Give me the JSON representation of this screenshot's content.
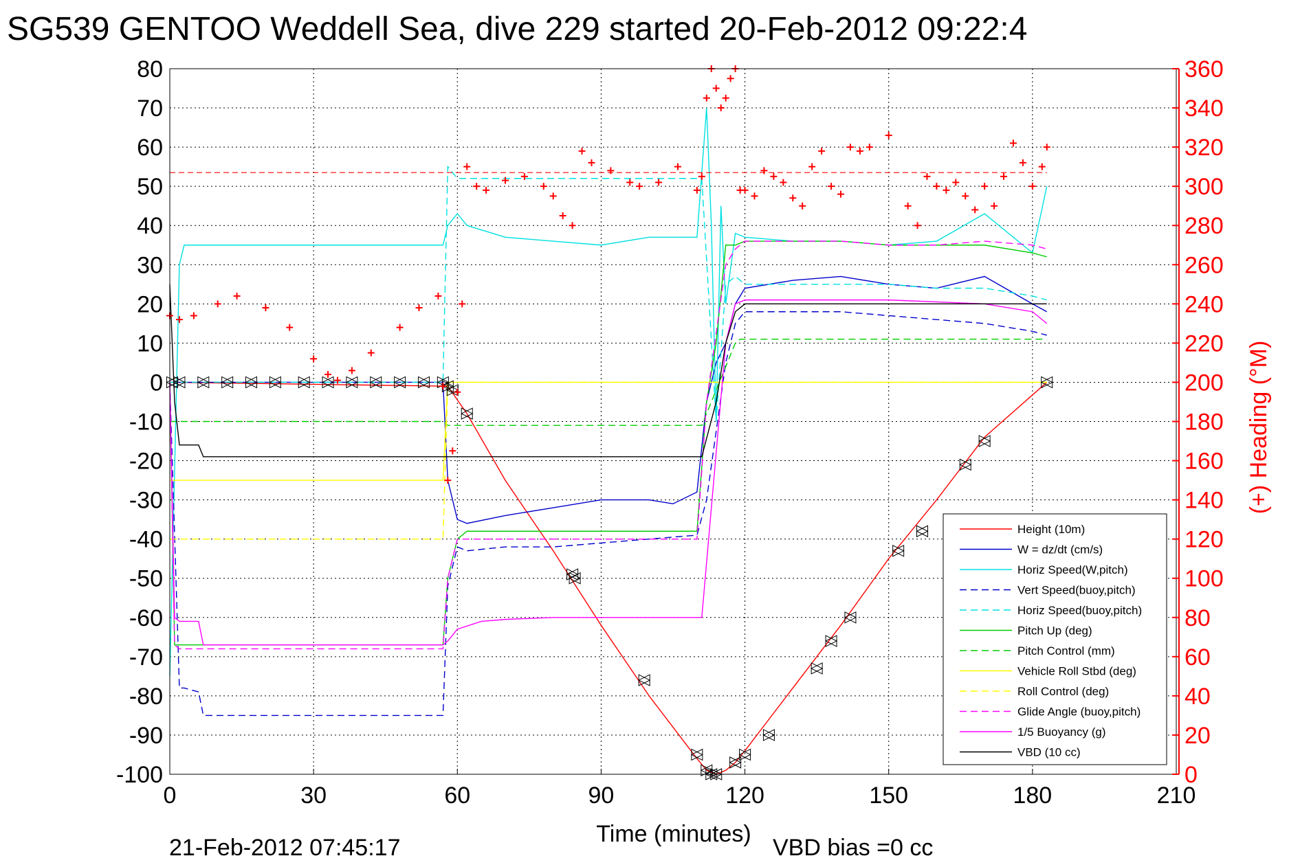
{
  "chart_data": {
    "type": "line",
    "title": "SG539 GENTOO Weddell Sea, dive 229 started 20-Feb-2012 09:22:4",
    "xlabel": "Time (minutes)",
    "ylabel": "",
    "y2label": "(+) Heading (°M)",
    "xlim": [
      0,
      210
    ],
    "ylim": [
      -100,
      80
    ],
    "y2lim": [
      0,
      360
    ],
    "xticks": [
      "0",
      "30",
      "60",
      "90",
      "120",
      "150",
      "180",
      "210"
    ],
    "yticks": [
      "80",
      "70",
      "60",
      "50",
      "40",
      "30",
      "20",
      "10",
      "0",
      "-10",
      "-20",
      "-30",
      "-40",
      "-50",
      "-60",
      "-70",
      "-80",
      "-90",
      "-100"
    ],
    "y2ticks": [
      "360",
      "340",
      "320",
      "300",
      "280",
      "260",
      "240",
      "220",
      "200",
      "180",
      "160",
      "140",
      "120",
      "100",
      "80",
      "60",
      "40",
      "20",
      "0"
    ],
    "grid": true,
    "legend_position": "bottom-right",
    "footer_date": "21-Feb-2012 07:45:17",
    "footer_bias": "VBD bias =0 cc",
    "heading_target": 307,
    "series": [
      {
        "name": "Height (10m)",
        "color": "#ff0000",
        "dash": "solid",
        "x": [
          0,
          58,
          62,
          70,
          80,
          90,
          100,
          110,
          112,
          114,
          116,
          118,
          120,
          125,
          130,
          140,
          150,
          160,
          170,
          183
        ],
        "y": [
          0,
          -1,
          -8,
          -25,
          -43,
          -62,
          -80,
          -96,
          -99,
          -100,
          -99,
          -97,
          -94,
          -86,
          -78,
          -62,
          -45,
          -30,
          -14,
          0
        ]
      },
      {
        "name": "W = dz/dt (cm/s)",
        "color": "#0000cc",
        "dash": "solid",
        "x": [
          0,
          57,
          58,
          60,
          62,
          70,
          80,
          90,
          100,
          105,
          110,
          112,
          114,
          116,
          118,
          120,
          130,
          140,
          150,
          160,
          170,
          180,
          183
        ],
        "y": [
          0,
          0,
          -25,
          -35,
          -36,
          -34,
          -32,
          -30,
          -30,
          -31,
          -28,
          -5,
          5,
          10,
          20,
          24,
          26,
          27,
          25,
          24,
          27,
          20,
          18
        ]
      },
      {
        "name": "Horiz Speed(W,pitch)",
        "color": "#00e0e0",
        "dash": "solid",
        "x": [
          0,
          2,
          3,
          57,
          58,
          60,
          62,
          70,
          80,
          90,
          100,
          110,
          112,
          113,
          114,
          115,
          116,
          118,
          120,
          130,
          140,
          150,
          160,
          170,
          180,
          183
        ],
        "y": [
          -75,
          30,
          35,
          35,
          40,
          43,
          40,
          37,
          36,
          35,
          37,
          37,
          70,
          40,
          -10,
          45,
          20,
          38,
          37,
          36,
          36,
          35,
          36,
          43,
          33,
          50
        ]
      },
      {
        "name": "Vert Speed(buoy,pitch)",
        "color": "#0000cc",
        "dash": "dashed",
        "x": [
          0,
          2,
          3,
          6,
          7,
          57,
          58,
          60,
          62,
          70,
          80,
          90,
          100,
          110,
          112,
          116,
          118,
          120,
          130,
          140,
          150,
          160,
          170,
          180,
          183
        ],
        "y": [
          0,
          -78,
          -78,
          -79,
          -85,
          -85,
          -52,
          -42,
          -43,
          -42,
          -42,
          -41,
          -40,
          -39,
          -30,
          5,
          15,
          18,
          18,
          18,
          17,
          16,
          15,
          13,
          12
        ]
      },
      {
        "name": "Horiz Speed(buoy,pitch)",
        "color": "#00e0e0",
        "dash": "dashed",
        "x": [
          0,
          57,
          58,
          60,
          70,
          80,
          90,
          100,
          110,
          111,
          114,
          116,
          118,
          120,
          130,
          140,
          150,
          160,
          170,
          180,
          183
        ],
        "y": [
          0,
          0,
          55,
          52,
          52,
          52,
          52,
          52,
          52,
          52,
          -10,
          25,
          27,
          25,
          25,
          25,
          25,
          24,
          24,
          22,
          21
        ]
      },
      {
        "name": "Pitch Up (deg)",
        "color": "#00cc00",
        "dash": "solid",
        "x": [
          0,
          1,
          2,
          57,
          58,
          60,
          62,
          70,
          80,
          90,
          100,
          110,
          112,
          114,
          116,
          118,
          120,
          130,
          140,
          150,
          160,
          170,
          180,
          183
        ],
        "y": [
          0,
          -67,
          -67,
          -67,
          -50,
          -40,
          -38,
          -38,
          -38,
          -38,
          -38,
          -38,
          -5,
          10,
          35,
          35,
          36,
          36,
          36,
          35,
          35,
          35,
          33,
          32
        ]
      },
      {
        "name": "Pitch Control (mm)",
        "color": "#00cc00",
        "dash": "dashed",
        "x": [
          0,
          57,
          58,
          110,
          111,
          118,
          119,
          180,
          183
        ],
        "y": [
          -10,
          -10,
          -11,
          -11,
          -11,
          10,
          11,
          11,
          11
        ]
      },
      {
        "name": "Vehicle Roll Stbd (deg)",
        "color": "#ffff00",
        "dash": "solid",
        "x": [
          0,
          57,
          58,
          60,
          70,
          80,
          90,
          100,
          110,
          115,
          118,
          120,
          130,
          140,
          150,
          160,
          170,
          180,
          183
        ],
        "y": [
          -25,
          -25,
          0,
          0,
          0,
          0,
          0,
          0,
          0,
          0,
          0,
          0,
          0,
          0,
          0,
          0,
          0,
          0,
          0
        ]
      },
      {
        "name": "Roll Control (deg)",
        "color": "#ffff00",
        "dash": "dashed",
        "x": [
          0,
          57,
          58,
          120,
          183
        ],
        "y": [
          -40,
          -40,
          0,
          0,
          0
        ]
      },
      {
        "name": "Glide Angle (buoy,pitch)",
        "color": "#ff00ff",
        "dash": "dashed",
        "x": [
          0,
          1,
          2,
          57,
          58,
          60,
          62,
          70,
          80,
          90,
          100,
          110,
          112,
          116,
          118,
          120,
          130,
          140,
          150,
          160,
          170,
          180,
          183
        ],
        "y": [
          0,
          -67,
          -68,
          -68,
          -50,
          -40,
          -40,
          -40,
          -40,
          -40,
          -40,
          -40,
          -5,
          30,
          34,
          36,
          36,
          36,
          35,
          35,
          36,
          35,
          34
        ]
      },
      {
        "name": "1/5 Buoyancy (g)",
        "color": "#ff00ff",
        "dash": "solid",
        "x": [
          0,
          1,
          2,
          6,
          7,
          57,
          58,
          60,
          65,
          70,
          80,
          90,
          100,
          110,
          111,
          116,
          118,
          120,
          130,
          140,
          150,
          160,
          170,
          180,
          183
        ],
        "y": [
          0,
          -60,
          -61,
          -61,
          -67,
          -67,
          -66,
          -63,
          -61,
          -60.5,
          -60,
          -60,
          -60,
          -60,
          -60,
          10,
          20,
          21,
          21,
          21,
          21,
          20.5,
          20,
          18,
          15
        ]
      },
      {
        "name": "VBD (10 cc)",
        "color": "#000000",
        "dash": "solid",
        "x": [
          0,
          1,
          2,
          6,
          7,
          57,
          58,
          110,
          111,
          114,
          116,
          118,
          120,
          130,
          140,
          150,
          160,
          170,
          180,
          183
        ],
        "y": [
          25,
          -5,
          -16,
          -16,
          -19,
          -19,
          -19,
          -19,
          -19,
          -5,
          10,
          18,
          20,
          20,
          20,
          20,
          20,
          20,
          20,
          20
        ]
      }
    ],
    "heading": {
      "name": "(+) Heading (°M)",
      "color": "#ff0000",
      "x": [
        0,
        2,
        5,
        10,
        14,
        20,
        25,
        30,
        33,
        35,
        38,
        42,
        48,
        52,
        56,
        57,
        58,
        59,
        60,
        61,
        62,
        64,
        66,
        70,
        74,
        78,
        80,
        82,
        84,
        86,
        88,
        92,
        96,
        98,
        102,
        106,
        110,
        111,
        112,
        113,
        114,
        115,
        116,
        117,
        118,
        119,
        120,
        122,
        124,
        126,
        128,
        130,
        132,
        134,
        136,
        138,
        140,
        142,
        144,
        146,
        150,
        154,
        156,
        158,
        160,
        162,
        164,
        166,
        168,
        170,
        172,
        174,
        176,
        178,
        180,
        182,
        183
      ],
      "y": [
        234,
        232,
        234,
        240,
        244,
        238,
        228,
        212,
        204,
        201,
        206,
        215,
        228,
        238,
        244,
        198,
        150,
        165,
        195,
        240,
        310,
        300,
        298,
        303,
        305,
        300,
        295,
        285,
        280,
        318,
        312,
        308,
        302,
        300,
        302,
        310,
        298,
        305,
        345,
        360,
        350,
        340,
        345,
        355,
        370,
        298,
        298,
        295,
        308,
        305,
        302,
        294,
        290,
        310,
        318,
        300,
        296,
        320,
        318,
        320,
        326,
        290,
        280,
        305,
        300,
        298,
        302,
        295,
        288,
        300,
        290,
        305,
        322,
        312,
        300,
        310,
        320
      ]
    },
    "markers": {
      "name": "triangle markers",
      "color": "#000000",
      "x": [
        0.5,
        2,
        7,
        12,
        17,
        22,
        28,
        33,
        38,
        43,
        48,
        53,
        57,
        58,
        59,
        62,
        84,
        84.5,
        99,
        110,
        112,
        113,
        114,
        118,
        120,
        125,
        135,
        138,
        142,
        152,
        157,
        166,
        170,
        183
      ],
      "y": [
        0,
        0,
        0,
        0,
        0,
        0,
        0,
        0,
        0,
        0,
        0,
        0,
        0,
        -1,
        -2,
        -8,
        -49,
        -50,
        -76,
        -95,
        -99,
        -100,
        -100,
        -97,
        -95,
        -90,
        -73,
        -66,
        -60,
        -43,
        -38,
        -21,
        -15,
        0
      ]
    }
  }
}
